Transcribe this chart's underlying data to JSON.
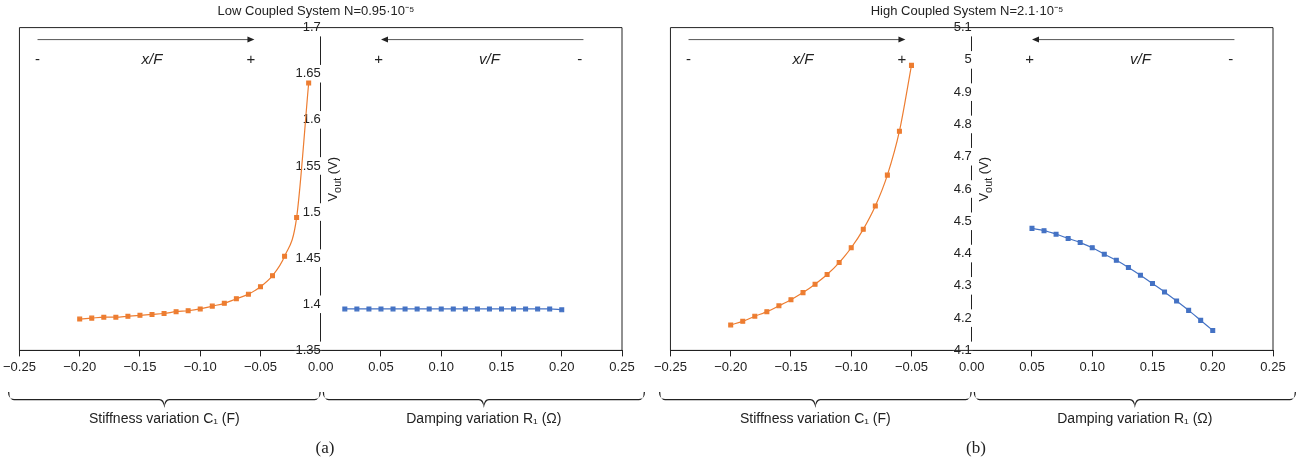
{
  "chart_data": [
    {
      "type": "line",
      "title": "Low Coupled System N=0.95·10⁻⁵",
      "ylabel": "V$_{out}$ (V)",
      "marker": "square",
      "line_style": "solid",
      "grid": false,
      "legend": false,
      "annotations": [
        "-",
        "x/F",
        "+",
        "+",
        "v/F",
        "-",
        "Stiffness variation C₁ (F)",
        "Damping variation R₁ (Ω)",
        "(a)"
      ],
      "xlim": [
        -0.25,
        0.25
      ],
      "xticks": [
        {
          "value": -0.25,
          "label": "−0.25"
        },
        {
          "value": -0.2,
          "label": "−0.20"
        },
        {
          "value": -0.15,
          "label": "−0.15"
        },
        {
          "value": -0.1,
          "label": "−0.10"
        },
        {
          "value": -0.05,
          "label": "−0.05"
        },
        {
          "value": 0,
          "label": "0.00"
        },
        {
          "value": 0.05,
          "label": "0.05"
        },
        {
          "value": 0.1,
          "label": "0.10"
        },
        {
          "value": 0.15,
          "label": "0.15"
        },
        {
          "value": 0.2,
          "label": "0.20"
        },
        {
          "value": 0.25,
          "label": "0.25"
        }
      ],
      "ylim": [
        1.35,
        1.7
      ],
      "yticks": [
        1.35,
        1.4,
        1.45,
        1.5,
        1.55,
        1.6,
        1.65,
        1.7
      ],
      "series": [
        {
          "color": "#ed7d31",
          "x": [
            -0.2,
            -0.19,
            -0.18,
            -0.17,
            -0.16,
            -0.15,
            -0.14,
            -0.13,
            -0.12,
            -0.11,
            -0.1,
            -0.09,
            -0.08,
            -0.07,
            -0.06,
            -0.05,
            -0.04,
            -0.03,
            -0.02,
            -0.01
          ],
          "values": [
            1.384,
            1.385,
            1.386,
            1.386,
            1.387,
            1.388,
            1.389,
            1.39,
            1.392,
            1.393,
            1.395,
            1.398,
            1.401,
            1.406,
            1.411,
            1.419,
            1.431,
            1.452,
            1.494,
            1.64
          ]
        },
        {
          "color": "#4472c4",
          "x": [
            0.02,
            0.03,
            0.04,
            0.05,
            0.06,
            0.07,
            0.08,
            0.09,
            0.1,
            0.11,
            0.12,
            0.13,
            0.14,
            0.15,
            0.16,
            0.17,
            0.18,
            0.19,
            0.2
          ],
          "values": [
            1.395,
            1.395,
            1.395,
            1.395,
            1.395,
            1.395,
            1.395,
            1.395,
            1.395,
            1.395,
            1.395,
            1.395,
            1.395,
            1.395,
            1.395,
            1.395,
            1.395,
            1.395,
            1.394
          ]
        }
      ]
    },
    {
      "type": "line",
      "title": "High Coupled System N=2.1·10⁻⁵",
      "ylabel": "V$_{out}$ (V)",
      "marker": "square",
      "line_style": "solid",
      "grid": false,
      "legend": false,
      "annotations": [
        "-",
        "x/F",
        "+",
        "+",
        "v/F",
        "-",
        "Stiffness variation C₁ (F)",
        "Damping variation R₁ (Ω)",
        "(b)"
      ],
      "xlim": [
        -0.25,
        0.25
      ],
      "xticks": [
        {
          "value": -0.25,
          "label": "−0.25"
        },
        {
          "value": -0.2,
          "label": "−0.20"
        },
        {
          "value": -0.15,
          "label": "−0.15"
        },
        {
          "value": -0.1,
          "label": "−0.10"
        },
        {
          "value": -0.05,
          "label": "−0.05"
        },
        {
          "value": 0,
          "label": "0.00"
        },
        {
          "value": 0.05,
          "label": "0.05"
        },
        {
          "value": 0.1,
          "label": "0.10"
        },
        {
          "value": 0.15,
          "label": "0.15"
        },
        {
          "value": 0.2,
          "label": "0.20"
        },
        {
          "value": 0.25,
          "label": "0.25"
        }
      ],
      "ylim": [
        4.1,
        5.1
      ],
      "yticks": [
        4.1,
        4.2,
        4.3,
        4.4,
        4.5,
        4.6,
        4.7,
        4.8,
        4.9,
        5,
        5.1
      ],
      "series": [
        {
          "color": "#ed7d31",
          "x": [
            -0.2,
            -0.19,
            -0.18,
            -0.17,
            -0.16,
            -0.15,
            -0.14,
            -0.13,
            -0.12,
            -0.11,
            -0.1,
            -0.09,
            -0.08,
            -0.07,
            -0.06,
            -0.05
          ],
          "values": [
            4.179,
            4.19,
            4.206,
            4.22,
            4.238,
            4.257,
            4.279,
            4.305,
            4.335,
            4.372,
            4.418,
            4.475,
            4.547,
            4.643,
            4.779,
            4.983
          ]
        },
        {
          "color": "#4472c4",
          "x": [
            0.05,
            0.06,
            0.07,
            0.08,
            0.09,
            0.1,
            0.11,
            0.12,
            0.13,
            0.14,
            0.15,
            0.16,
            0.17,
            0.18,
            0.19,
            0.2
          ],
          "values": [
            4.478,
            4.471,
            4.46,
            4.447,
            4.434,
            4.418,
            4.398,
            4.379,
            4.357,
            4.333,
            4.307,
            4.281,
            4.253,
            4.224,
            4.193,
            4.162
          ]
        }
      ]
    }
  ]
}
